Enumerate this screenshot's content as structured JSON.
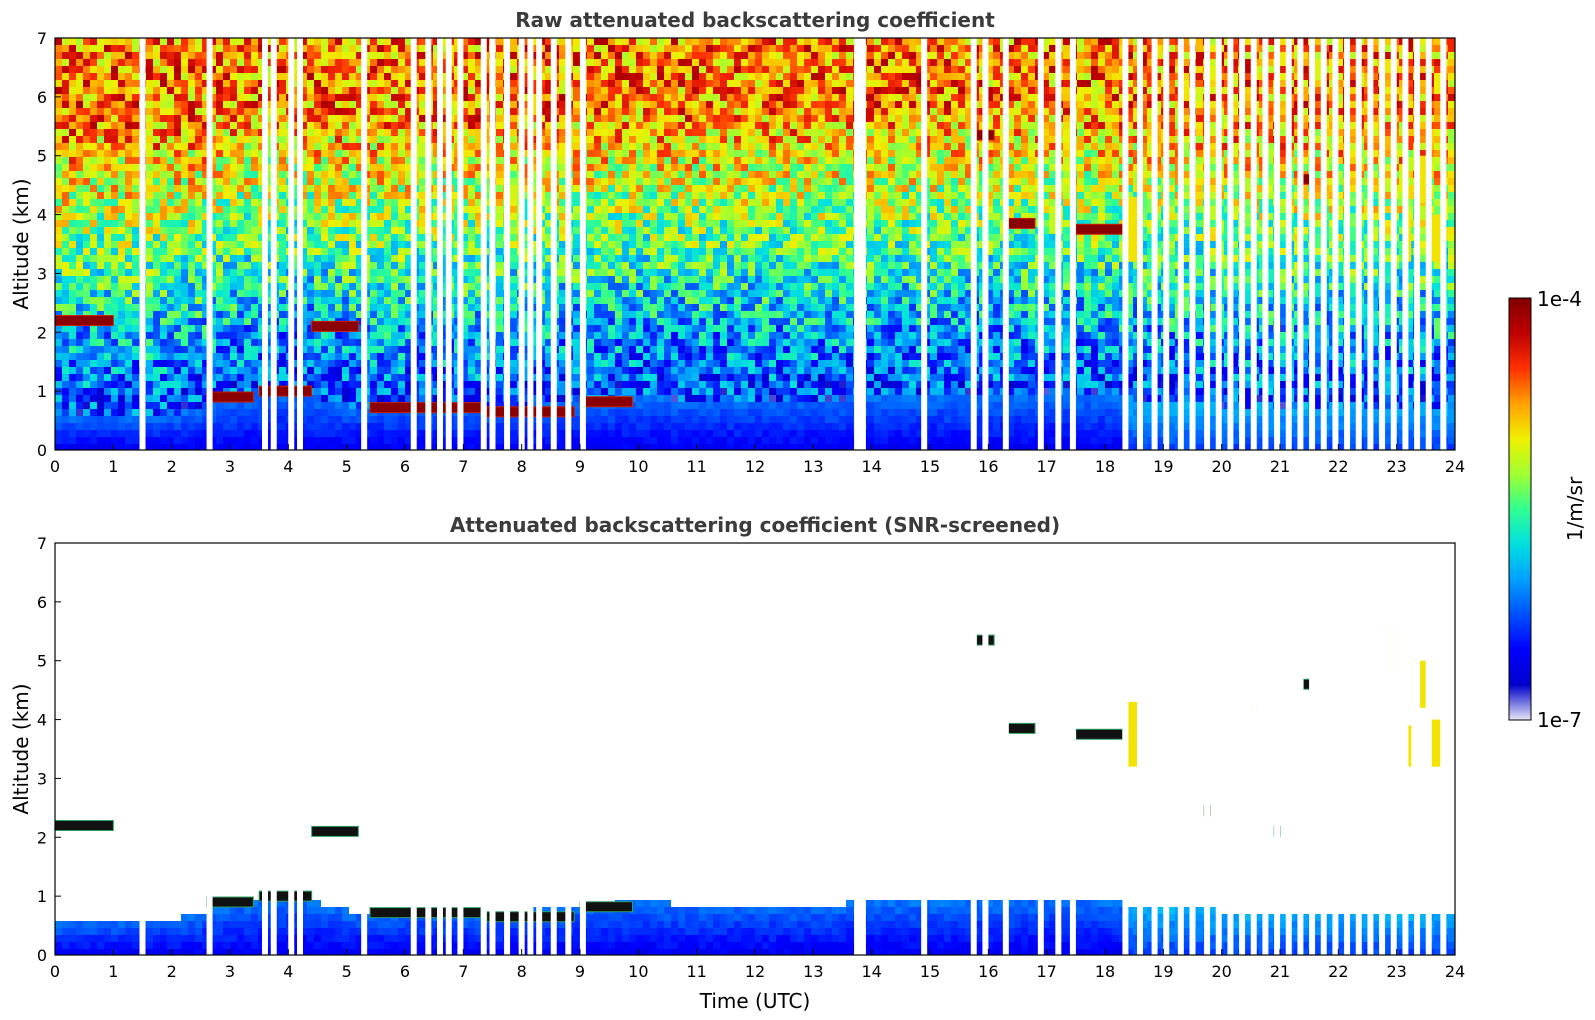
{
  "chart_data": [
    {
      "type": "heatmap",
      "title": "Raw attenuated backscattering coefficient",
      "xlabel": "",
      "ylabel": "Altitude (km)",
      "xlim": [
        0,
        24
      ],
      "ylim": [
        0,
        7
      ],
      "xticks": [
        "0",
        "1",
        "2",
        "3",
        "4",
        "5",
        "6",
        "7",
        "8",
        "9",
        "10",
        "11",
        "12",
        "13",
        "14",
        "15",
        "16",
        "17",
        "18",
        "19",
        "20",
        "21",
        "22",
        "23",
        "24"
      ],
      "yticks": [
        "0",
        "1",
        "2",
        "3",
        "4",
        "5",
        "6",
        "7"
      ],
      "grid": false,
      "data_gaps_utc": [
        1.5,
        2.65,
        3.6,
        3.75,
        4.05,
        4.2,
        5.3,
        6.15,
        6.4,
        6.6,
        6.75,
        6.95,
        7.35,
        7.5,
        7.75,
        8.0,
        8.15,
        8.3,
        8.55,
        8.8,
        9.05,
        13.75,
        13.85,
        14.9,
        15.75,
        15.95,
        16.3,
        16.9,
        17.2,
        17.45,
        18.35,
        18.6,
        18.85,
        19.05,
        19.3,
        19.5,
        19.75,
        19.95,
        20.15,
        20.35,
        20.55,
        20.75,
        20.95,
        21.15,
        21.35,
        21.55,
        21.75,
        21.95,
        22.15,
        22.35,
        22.55,
        22.75,
        22.95,
        23.15,
        23.35,
        23.55,
        23.8
      ],
      "features": {
        "boundary_layer": [
          {
            "t": 0,
            "top_km": 0.55
          },
          {
            "t": 2,
            "top_km": 0.6
          },
          {
            "t": 3,
            "top_km": 0.85
          },
          {
            "t": 4,
            "top_km": 1.0
          },
          {
            "t": 5,
            "top_km": 0.75
          },
          {
            "t": 6,
            "top_km": 0.75
          },
          {
            "t": 7,
            "top_km": 0.7
          },
          {
            "t": 8,
            "top_km": 0.75
          },
          {
            "t": 9,
            "top_km": 0.85
          },
          {
            "t": 10,
            "top_km": 0.9
          },
          {
            "t": 11,
            "top_km": 0.85
          },
          {
            "t": 12,
            "top_km": 0.85
          },
          {
            "t": 13,
            "top_km": 0.85
          },
          {
            "t": 14,
            "top_km": 0.9
          },
          {
            "t": 15,
            "top_km": 0.9
          },
          {
            "t": 16,
            "top_km": 0.9
          },
          {
            "t": 17,
            "top_km": 0.95
          },
          {
            "t": 18,
            "top_km": 0.9
          },
          {
            "t": 19,
            "top_km": 0.8
          },
          {
            "t": 20,
            "top_km": 0.75
          },
          {
            "t": 21,
            "top_km": 0.75
          },
          {
            "t": 22,
            "top_km": 0.75
          },
          {
            "t": 23,
            "top_km": 0.75
          },
          {
            "t": 24,
            "top_km": 0.75
          }
        ],
        "cloud_layers": [
          {
            "t0": 0.0,
            "t1": 1.0,
            "alt_km": 2.2
          },
          {
            "t0": 4.4,
            "t1": 5.2,
            "alt_km": 2.1
          },
          {
            "t0": 2.6,
            "t1": 3.4,
            "alt_km": 0.9
          },
          {
            "t0": 3.5,
            "t1": 4.4,
            "alt_km": 1.0
          },
          {
            "t0": 5.4,
            "t1": 7.3,
            "alt_km": 0.72
          },
          {
            "t0": 7.4,
            "t1": 8.9,
            "alt_km": 0.65
          },
          {
            "t0": 9.0,
            "t1": 9.9,
            "alt_km": 0.82
          },
          {
            "t0": 15.8,
            "t1": 16.1,
            "alt_km": 5.35
          },
          {
            "t0": 16.3,
            "t1": 16.8,
            "alt_km": 3.85
          },
          {
            "t0": 17.5,
            "t1": 18.3,
            "alt_km": 3.75
          },
          {
            "t0": 19.7,
            "t1": 19.8,
            "alt_km": 2.45
          },
          {
            "t0": 20.9,
            "t1": 21.0,
            "alt_km": 2.1
          },
          {
            "t0": 21.4,
            "t1": 21.55,
            "alt_km": 4.6
          }
        ],
        "virga_streaks": [
          {
            "t0": 18.4,
            "t1": 18.55,
            "alt0_km": 3.2,
            "alt1_km": 4.3
          },
          {
            "t0": 19.5,
            "t1": 19.55,
            "alt0_km": 5.2,
            "alt1_km": 5.5
          },
          {
            "t0": 20.5,
            "t1": 20.6,
            "alt0_km": 4.1,
            "alt1_km": 4.3
          },
          {
            "t0": 22.9,
            "t1": 23.0,
            "alt0_km": 4.8,
            "alt1_km": 5.6
          },
          {
            "t0": 23.1,
            "t1": 23.25,
            "alt0_km": 3.2,
            "alt1_km": 3.9
          },
          {
            "t0": 23.4,
            "t1": 23.5,
            "alt0_km": 4.2,
            "alt1_km": 5.0
          },
          {
            "t0": 23.6,
            "t1": 23.75,
            "alt0_km": 3.2,
            "alt1_km": 4.0
          }
        ],
        "noisy_upper_layer": true
      }
    },
    {
      "type": "heatmap",
      "title": "Attenuated backscattering coefficient (SNR-screened)",
      "xlabel": "Time (UTC)",
      "ylabel": "Altitude (km)",
      "xlim": [
        0,
        24
      ],
      "ylim": [
        0,
        7
      ],
      "xticks": [
        "0",
        "1",
        "2",
        "3",
        "4",
        "5",
        "6",
        "7",
        "8",
        "9",
        "10",
        "11",
        "12",
        "13",
        "14",
        "15",
        "16",
        "17",
        "18",
        "19",
        "20",
        "21",
        "22",
        "23",
        "24"
      ],
      "yticks": [
        "0",
        "1",
        "2",
        "3",
        "4",
        "5",
        "6",
        "7"
      ],
      "grid": false,
      "noisy_upper_layer": false
    }
  ],
  "colorbar": {
    "label": "1/m/sr",
    "max_label": "1e-4",
    "min_label": "1e-7",
    "scale": "log",
    "range": [
      1e-07,
      0.0001
    ],
    "colors": [
      "#e6e6f5",
      "#0000cc",
      "#0000ff",
      "#0050ff",
      "#00a0ff",
      "#00e0e0",
      "#30ff90",
      "#a0ff30",
      "#f0f000",
      "#ffa000",
      "#ff3000",
      "#c00000",
      "#800000"
    ]
  }
}
